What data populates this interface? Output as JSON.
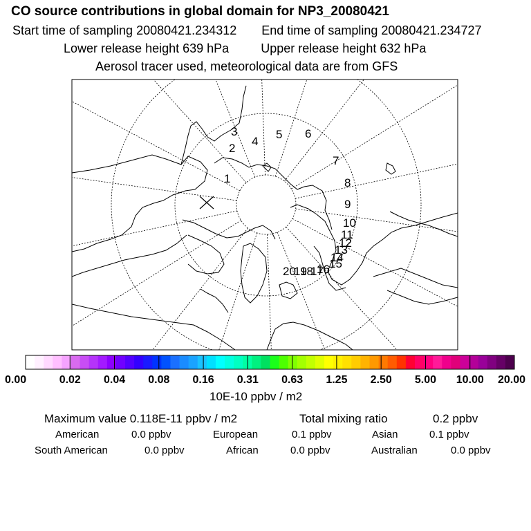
{
  "header": {
    "title": "CO  source contributions in global domain for NP3_20080421",
    "start_label": "Start time of sampling",
    "start_value": "20080421.234312",
    "end_label": "End time of sampling",
    "end_value": "20080421.234727",
    "lower_label": "Lower release height",
    "lower_value": "639 hPa",
    "upper_label": "Upper release height",
    "upper_value": "632 hPa",
    "note": "Aerosol tracer used, meteorological data are from GFS"
  },
  "map": {
    "trajectory_labels": [
      "1",
      "2",
      "3",
      "4",
      "5",
      "6",
      "7",
      "8",
      "9",
      "10",
      "11",
      "12",
      "13",
      "14",
      "15",
      "16",
      "17",
      "18",
      "19",
      "20"
    ]
  },
  "colorbar": {
    "tick_labels": [
      "0.00",
      "0.02",
      "0.04",
      "0.08",
      "0.16",
      "0.31",
      "0.63",
      "1.25",
      "2.50",
      "5.00",
      "10.00",
      "20.00"
    ],
    "unit": "10E-10 ppbv / m2",
    "colors": [
      "#ffffff",
      "#fff0ff",
      "#ffd9ff",
      "#ffbfff",
      "#f5a3ff",
      "#d96bf0",
      "#c84df5",
      "#b533fa",
      "#a31aff",
      "#8c00ff",
      "#7000ff",
      "#5200ff",
      "#3300ff",
      "#1a1aff",
      "#0033ff",
      "#0052ff",
      "#1a70ff",
      "#1a8cff",
      "#1aa3ff",
      "#1ac2ff",
      "#00e0ff",
      "#00ffff",
      "#00ffe0",
      "#00ffc2",
      "#00ffa3",
      "#00f080",
      "#00e060",
      "#1aff1a",
      "#4dff00",
      "#80ff00",
      "#a3ff00",
      "#c2ff00",
      "#e0ff00",
      "#ffff00",
      "#fff000",
      "#ffe000",
      "#ffcc00",
      "#ffb300",
      "#ff9900",
      "#ff7a00",
      "#ff5c00",
      "#ff3300",
      "#ff0033",
      "#ff0066",
      "#ff0080",
      "#ff1a99",
      "#f0008c",
      "#e0007a",
      "#cc0099",
      "#b30099",
      "#990099",
      "#800080",
      "#660066",
      "#4d004d"
    ]
  },
  "summary": {
    "max_label": "Maximum value",
    "max_value": "0.118E-11 ppbv / m2",
    "total_label": "Total mixing ratio",
    "total_value": "0.2 ppbv",
    "regions": [
      {
        "name": "American",
        "value": "0.0 ppbv"
      },
      {
        "name": "European",
        "value": "0.1 ppbv"
      },
      {
        "name": "Asian",
        "value": "0.1 ppbv"
      },
      {
        "name": "South American",
        "value": "0.0 ppbv"
      },
      {
        "name": "African",
        "value": "0.0 ppbv"
      },
      {
        "name": "Australian",
        "value": "0.0 ppbv"
      }
    ]
  }
}
